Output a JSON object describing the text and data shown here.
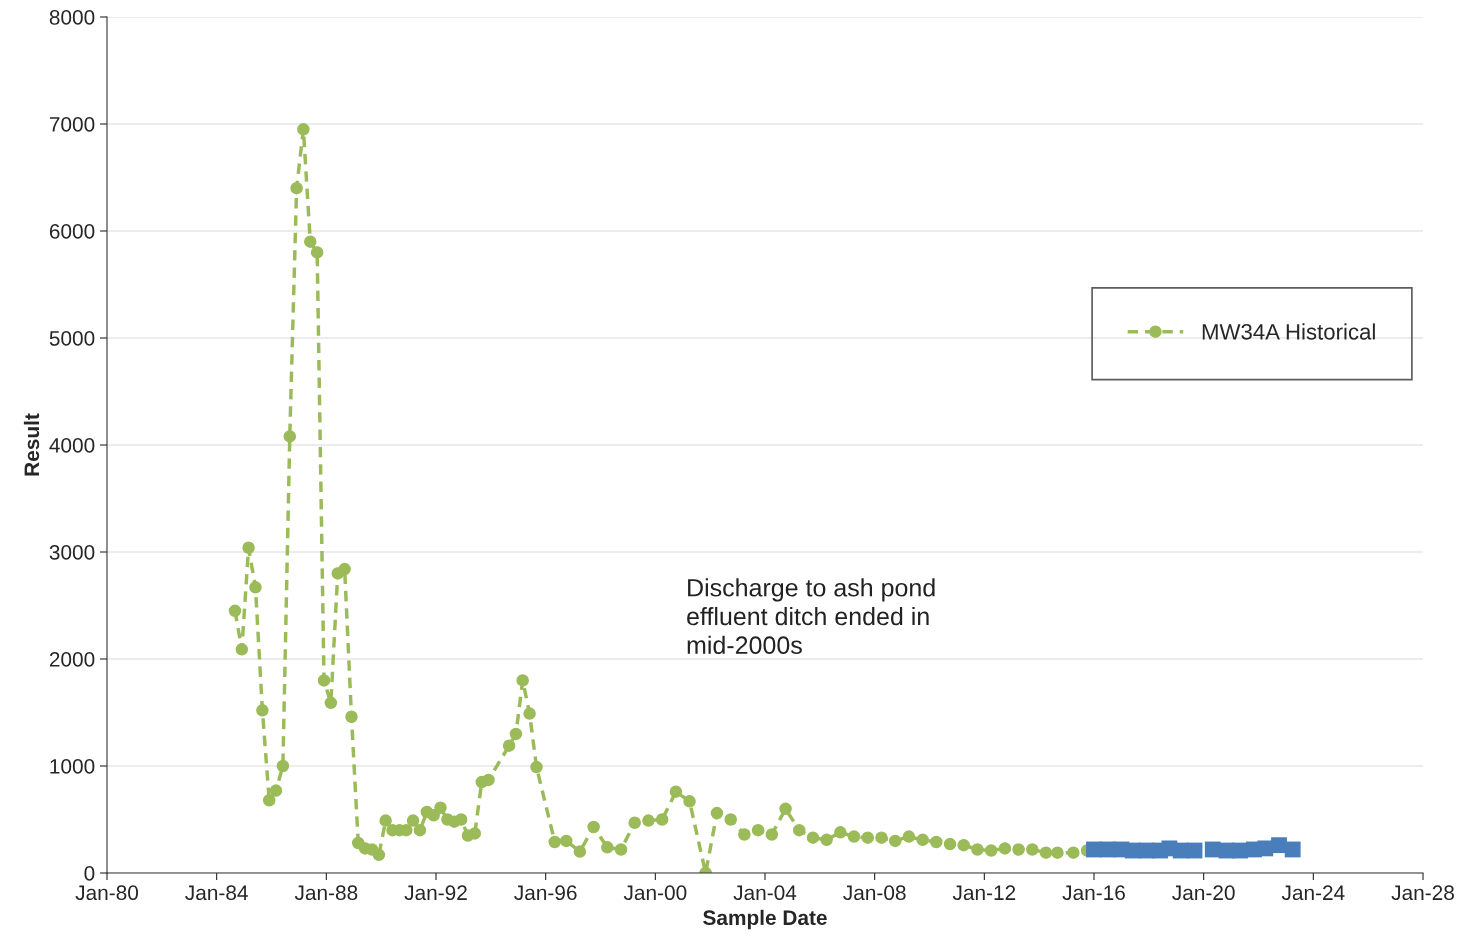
{
  "chart_data": {
    "type": "line",
    "xlabel": "Sample Date",
    "ylabel": "Result",
    "xlim": [
      "1980-01",
      "2028-01"
    ],
    "xticks": [
      {
        "value": "1980-01",
        "label": "Jan-80"
      },
      {
        "value": "1984-01",
        "label": "Jan-84"
      },
      {
        "value": "1988-01",
        "label": "Jan-88"
      },
      {
        "value": "1992-01",
        "label": "Jan-92"
      },
      {
        "value": "1996-01",
        "label": "Jan-96"
      },
      {
        "value": "2000-01",
        "label": "Jan-00"
      },
      {
        "value": "2004-01",
        "label": "Jan-04"
      },
      {
        "value": "2008-01",
        "label": "Jan-08"
      },
      {
        "value": "2012-01",
        "label": "Jan-12"
      },
      {
        "value": "2016-01",
        "label": "Jan-16"
      },
      {
        "value": "2020-01",
        "label": "Jan-20"
      },
      {
        "value": "2024-01",
        "label": "Jan-24"
      },
      {
        "value": "2028-01",
        "label": "Jan-28"
      }
    ],
    "ylim": [
      0,
      8000
    ],
    "yticks": [
      0,
      1000,
      2000,
      3000,
      4000,
      5000,
      6000,
      7000,
      8000
    ],
    "grid": "y",
    "legend": "right",
    "annotations": [
      "Discharge to ash pond\neffluent ditch ended in\nmid-2000s"
    ],
    "series": [
      {
        "name": "MW34A Historical",
        "color": "#9bbb59",
        "marker": "circle",
        "line_style": "dashed",
        "x": [
          "1984-09",
          "1984-12",
          "1985-03",
          "1985-06",
          "1985-09",
          "1985-12",
          "1986-03",
          "1986-06",
          "1986-09",
          "1986-12",
          "1987-03",
          "1987-06",
          "1987-09",
          "1987-12",
          "1988-03",
          "1988-06",
          "1988-09",
          "1988-12",
          "1989-03",
          "1989-06",
          "1989-09",
          "1989-12",
          "1990-03",
          "1990-06",
          "1990-09",
          "1990-12",
          "1991-03",
          "1991-06",
          "1991-09",
          "1991-12",
          "1992-03",
          "1992-06",
          "1992-09",
          "1992-12",
          "1993-03",
          "1993-06",
          "1993-09",
          "1993-12",
          "1994-09",
          "1994-12",
          "1995-03",
          "1995-06",
          "1995-09",
          "1996-05",
          "1996-10",
          "1997-04",
          "1997-10",
          "1998-04",
          "1998-10",
          "1999-04",
          "1999-10",
          "2000-04",
          "2000-10",
          "2001-04",
          "2001-11",
          "2002-04",
          "2002-10",
          "2003-04",
          "2003-10",
          "2004-04",
          "2004-10",
          "2005-04",
          "2005-10",
          "2006-04",
          "2006-10",
          "2007-04",
          "2007-10",
          "2008-04",
          "2008-10",
          "2009-04",
          "2009-10",
          "2010-04",
          "2010-10",
          "2011-04",
          "2011-10",
          "2012-04",
          "2012-10",
          "2013-04",
          "2013-10",
          "2014-04",
          "2014-09",
          "2015-04",
          "2015-10"
        ],
        "values": [
          2450,
          2090,
          3040,
          2670,
          1520,
          680,
          770,
          1000,
          4080,
          6400,
          6950,
          5900,
          5800,
          1800,
          1590,
          2800,
          2840,
          1460,
          280,
          230,
          220,
          170,
          490,
          400,
          400,
          400,
          490,
          400,
          570,
          540,
          610,
          500,
          480,
          500,
          350,
          370,
          850,
          870,
          1190,
          1300,
          1800,
          1490,
          990,
          290,
          300,
          200,
          430,
          240,
          220,
          470,
          490,
          500,
          760,
          670,
          0,
          560,
          500,
          360,
          400,
          360,
          600,
          400,
          330,
          310,
          380,
          340,
          330,
          330,
          300,
          340,
          310,
          290,
          270,
          260,
          220,
          210,
          230,
          220,
          220,
          190,
          190,
          190,
          210
        ]
      },
      {
        "type": "scatter",
        "color": "#4a7ebb",
        "marker": "square",
        "x": [
          "2016-01",
          "2016-07",
          "2017-01",
          "2017-06",
          "2017-12",
          "2018-06",
          "2018-10",
          "2019-03",
          "2019-09",
          "2020-05",
          "2020-11",
          "2021-05",
          "2021-11",
          "2022-04",
          "2022-10",
          "2023-04"
        ],
        "values": [
          220,
          220,
          220,
          210,
          210,
          210,
          230,
          210,
          210,
          220,
          210,
          210,
          220,
          230,
          260,
          220
        ]
      }
    ]
  }
}
